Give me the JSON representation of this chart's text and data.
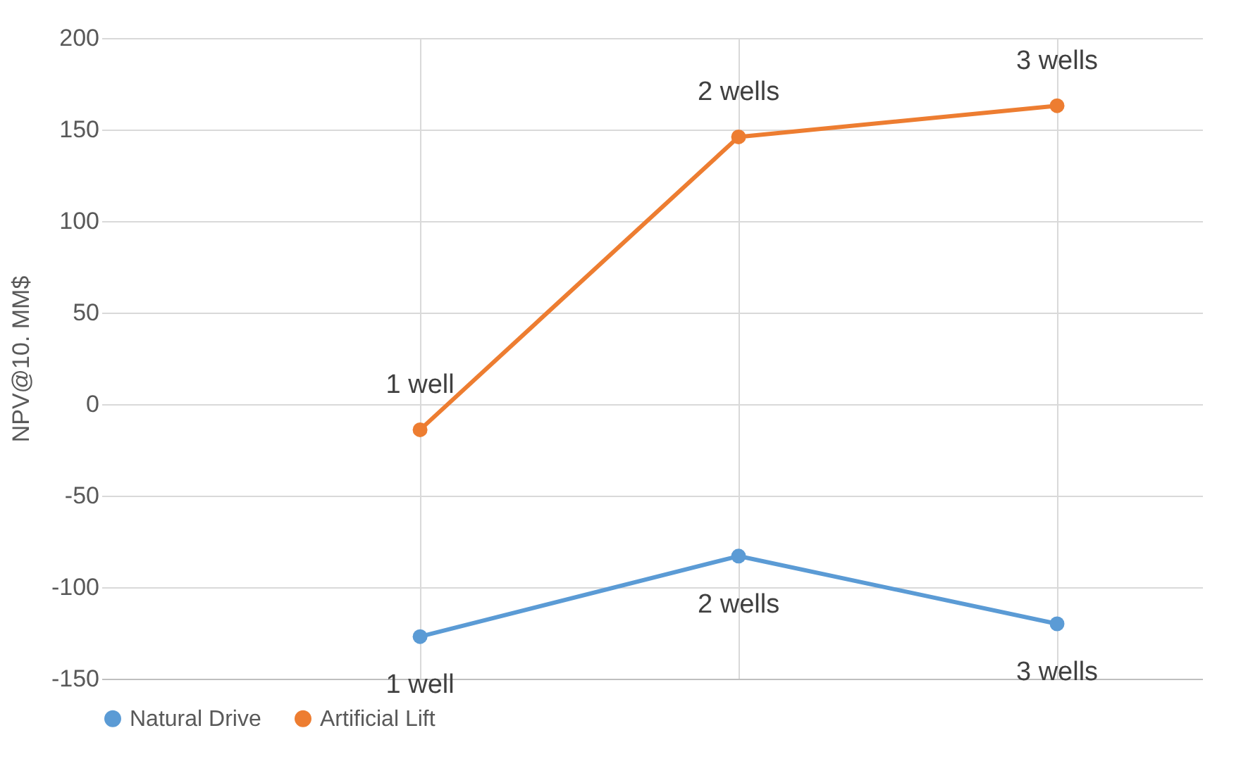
{
  "chart_data": {
    "type": "line",
    "ylabel": "NPV@10. MM$",
    "categories": [
      null,
      null,
      null
    ],
    "tick_labels": "y",
    "ylim": [
      -150,
      200
    ],
    "yticks": [
      -150,
      -100,
      -50,
      0,
      50,
      100,
      150,
      200
    ],
    "grid": true,
    "legend": "bottom",
    "marker": "circle",
    "line_style": "solid",
    "series": [
      {
        "name": "Natural Drive",
        "color": "#5b9bd5",
        "values": [
          -127,
          -83,
          -120
        ]
      },
      {
        "name": "Artificial Lift",
        "color": "#ed7d31",
        "values": [
          -14,
          146,
          163
        ]
      }
    ],
    "annotations": [
      {
        "text": "1 well",
        "y": -127
      },
      {
        "text": "2 wells",
        "y": -83
      },
      {
        "text": "3 wells",
        "y": -120
      },
      {
        "text": "1 well",
        "y": -14
      },
      {
        "text": "2 wells",
        "y": 146
      },
      {
        "text": "3 wells",
        "y": 163
      }
    ]
  }
}
